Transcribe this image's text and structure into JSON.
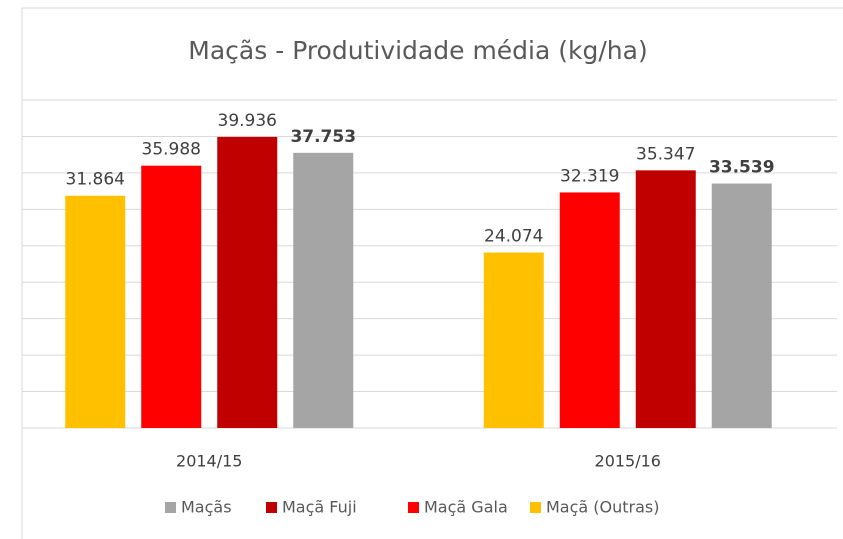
{
  "chart_data": {
    "type": "bar",
    "title": "Maçãs - Produtividade média (kg/ha)",
    "categories": [
      "2014/15",
      "2015/16"
    ],
    "series": [
      {
        "name": "Maçãs",
        "color": "#a5a5a5",
        "values": [
          37753,
          33539
        ],
        "value_labels": [
          "37.753",
          "33.539"
        ]
      },
      {
        "name": "Maçã Fuji",
        "color": "#c00000",
        "values": [
          39936,
          35347
        ],
        "value_labels": [
          "39.936",
          "35.347"
        ]
      },
      {
        "name": "Maçã Gala",
        "color": "#ff0000",
        "values": [
          35988,
          32319
        ],
        "value_labels": [
          "35.988",
          "32.319"
        ]
      },
      {
        "name": "Maçã (Outras)",
        "color": "#ffc000",
        "values": [
          31864,
          24074
        ],
        "value_labels": [
          "31.864",
          "24.074"
        ]
      }
    ],
    "ylim": [
      0,
      45000
    ],
    "yticks": [
      0,
      5000,
      10000,
      15000,
      20000,
      25000,
      30000,
      35000,
      40000,
      45000
    ],
    "grid": true,
    "legend": "bottom"
  }
}
